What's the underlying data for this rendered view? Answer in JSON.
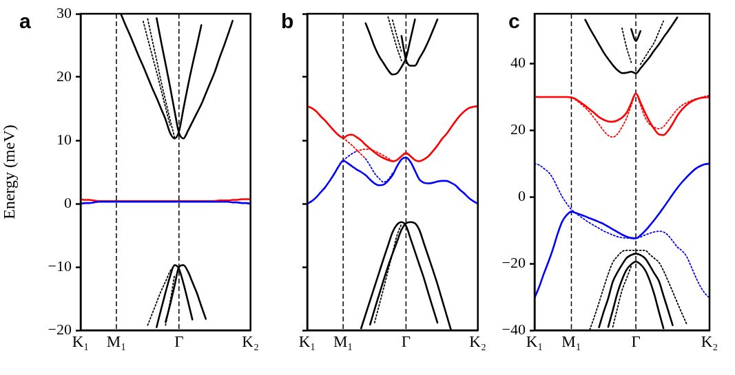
{
  "chart_data": [
    {
      "type": "line",
      "title": "a",
      "ylabel": "Energy (meV)",
      "ylim": [
        -20,
        30
      ],
      "marker": "none",
      "categories": [
        "K₁",
        null,
        null,
        null,
        null,
        null,
        null,
        null,
        "M₁",
        null,
        null,
        null,
        null,
        null,
        null,
        null,
        null,
        null,
        null,
        null,
        null,
        null,
        "Γ",
        null,
        null,
        null,
        null,
        null,
        null,
        null,
        null,
        null,
        null,
        null,
        null,
        null,
        null,
        null,
        "K₂"
      ],
      "yticks": [
        -20,
        -10,
        0,
        10,
        20,
        30
      ],
      "ref_lines": [
        {
          "axis": "x",
          "value": "M₁",
          "color": "#000000",
          "line_style": "dashed"
        },
        {
          "axis": "x",
          "value": "Γ",
          "color": "#000000",
          "line_style": "dashed"
        }
      ],
      "series": [
        {
          "color": "#000000",
          "line_style": "solid",
          "values": [
            null,
            null,
            null,
            null,
            null,
            null,
            null,
            null,
            null,
            30,
            28.3,
            26.7,
            25,
            23.3,
            21.7,
            20,
            18.3,
            16.7,
            15,
            13.3,
            11.2,
            10.3,
            11.4,
            15,
            18.6,
            21.9,
            25,
            28.2,
            null,
            null,
            null,
            null,
            null,
            null,
            null,
            null,
            null,
            null,
            null
          ]
        },
        {
          "color": "#000000",
          "line_style": "solid",
          "values": [
            null,
            null,
            null,
            null,
            null,
            null,
            null,
            null,
            null,
            null,
            null,
            null,
            null,
            null,
            null,
            null,
            null,
            29.3,
            25.6,
            22.1,
            18.5,
            14.7,
            11.2,
            10.3,
            11.5,
            12.9,
            14.3,
            15.7,
            17.4,
            19.1,
            20.8,
            22.9,
            24.8,
            26.8,
            28.9,
            null,
            null,
            null,
            null
          ]
        },
        {
          "color": "#000000",
          "line_style": "dotted",
          "values": [
            null,
            null,
            null,
            null,
            null,
            null,
            null,
            null,
            null,
            null,
            null,
            null,
            null,
            null,
            28.8,
            26.1,
            23.4,
            20.8,
            18,
            15.2,
            12.4,
            null,
            null,
            null,
            null,
            null,
            null,
            null,
            null,
            null,
            null,
            null,
            null,
            null,
            null,
            null,
            null,
            null,
            null
          ]
        },
        {
          "color": "#000000",
          "line_style": "dotted",
          "values": [
            null,
            null,
            null,
            null,
            null,
            null,
            null,
            null,
            null,
            null,
            null,
            null,
            null,
            null,
            null,
            29.2,
            25.9,
            22.7,
            19.3,
            16.3,
            13.3,
            10.5,
            null,
            null,
            null,
            null,
            null,
            null,
            null,
            null,
            null,
            null,
            null,
            null,
            null,
            null,
            null,
            null,
            null
          ]
        },
        {
          "color": "#000000",
          "line_style": "solid",
          "values": [
            null,
            null,
            null,
            null,
            null,
            null,
            null,
            null,
            null,
            null,
            null,
            null,
            null,
            null,
            null,
            null,
            null,
            -19.5,
            -16.7,
            -14,
            -11.5,
            -9.7,
            -10.3,
            -12.6,
            -15.4,
            -18.3,
            null,
            null,
            null,
            null,
            null,
            null,
            null,
            null,
            null,
            null,
            null,
            null,
            null
          ]
        },
        {
          "color": "#000000",
          "line_style": "solid",
          "values": [
            null,
            null,
            null,
            null,
            null,
            null,
            null,
            null,
            null,
            null,
            null,
            null,
            null,
            null,
            null,
            null,
            null,
            null,
            null,
            -18.7,
            -16,
            -13,
            -10,
            -9.7,
            -10.7,
            -12.4,
            -14.1,
            -16.2,
            -18.2,
            null,
            null,
            null,
            null,
            null,
            null,
            null,
            null,
            null,
            null
          ]
        },
        {
          "color": "#000000",
          "line_style": "dotted",
          "values": [
            null,
            null,
            null,
            null,
            null,
            null,
            null,
            null,
            null,
            null,
            null,
            null,
            null,
            null,
            null,
            -19.2,
            -17.4,
            -15.6,
            -13.8,
            -12.3,
            -10.7,
            -9.8,
            null,
            null,
            null,
            null,
            null,
            null,
            null,
            null,
            null,
            null,
            null,
            null,
            null,
            null,
            null,
            null,
            null
          ]
        },
        {
          "color": "#000000",
          "line_style": "dotted",
          "values": [
            null,
            null,
            null,
            null,
            null,
            null,
            null,
            null,
            null,
            null,
            null,
            null,
            null,
            null,
            null,
            null,
            null,
            null,
            null,
            -19.2,
            -15.6,
            -11.3,
            null,
            null,
            null,
            null,
            null,
            null,
            null,
            null,
            null,
            null,
            null,
            null,
            null,
            null,
            null,
            null,
            null
          ]
        },
        {
          "color": "#0000ff",
          "line_style": "solid",
          "values": [
            0,
            0.1,
            0.1,
            0.2,
            0.3,
            0.3,
            0.3,
            0.3,
            0.3,
            0.3,
            0.3,
            0.3,
            0.3,
            0.3,
            0.3,
            0.3,
            0.3,
            0.3,
            0.3,
            0.3,
            0.3,
            0.3,
            0.3,
            0.3,
            0.3,
            0.3,
            0.3,
            0.3,
            0.3,
            0.3,
            0.3,
            0.3,
            0.3,
            0.3,
            0.2,
            0.2,
            0.1,
            0.1,
            0
          ]
        },
        {
          "color": "#ff0000",
          "line_style": "solid",
          "values": [
            0.7,
            0.6,
            0.6,
            0.5,
            0.4,
            0.4,
            0.4,
            0.4,
            0.4,
            0.4,
            0.4,
            0.4,
            0.4,
            0.4,
            0.4,
            0.4,
            0.4,
            0.4,
            0.4,
            0.4,
            0.4,
            0.4,
            0.4,
            0.4,
            0.4,
            0.4,
            0.4,
            0.4,
            0.4,
            0.4,
            0.4,
            0.5,
            0.5,
            0.5,
            0.6,
            0.6,
            0.7,
            0.7,
            0.7
          ]
        }
      ]
    },
    {
      "type": "line",
      "title": "b",
      "ylim": [
        -20,
        30
      ],
      "marker": "none",
      "tick_labels": "x",
      "categories": [
        "K₁",
        null,
        null,
        null,
        null,
        null,
        null,
        null,
        "M₁",
        null,
        null,
        null,
        null,
        null,
        null,
        null,
        null,
        null,
        null,
        null,
        null,
        null,
        "Γ",
        null,
        null,
        null,
        null,
        null,
        null,
        null,
        null,
        null,
        null,
        null,
        null,
        null,
        null,
        null,
        "K₂"
      ],
      "yticks": [
        -20,
        -10,
        0,
        10,
        20,
        30
      ],
      "ref_lines": [
        {
          "axis": "x",
          "value": "M₁",
          "color": "#000000",
          "line_style": "dashed"
        },
        {
          "axis": "x",
          "value": "Γ",
          "color": "#000000",
          "line_style": "dashed"
        }
      ],
      "series": [
        {
          "color": "#000000",
          "line_style": "solid",
          "values": [
            null,
            null,
            null,
            null,
            null,
            null,
            null,
            null,
            null,
            null,
            null,
            null,
            null,
            28.5,
            26.7,
            24.8,
            23.3,
            22.2,
            21.1,
            20.4,
            20.6,
            21.6,
            23,
            26,
            29.1,
            null,
            null,
            null,
            null,
            null,
            null,
            null,
            null,
            null,
            null,
            null,
            null,
            null,
            null
          ]
        },
        {
          "color": "#000000",
          "line_style": "solid",
          "values": [
            null,
            null,
            null,
            null,
            null,
            null,
            null,
            null,
            null,
            null,
            null,
            null,
            null,
            null,
            null,
            null,
            null,
            null,
            null,
            null,
            null,
            26.5,
            22.7,
            21.8,
            21.8,
            23,
            24.2,
            25.7,
            27.4,
            29.1,
            null,
            null,
            null,
            null,
            null,
            null,
            null,
            null,
            null
          ]
        },
        {
          "color": "#000000",
          "line_style": "dotted",
          "values": [
            null,
            null,
            null,
            null,
            null,
            null,
            null,
            null,
            null,
            null,
            null,
            null,
            null,
            null,
            null,
            null,
            null,
            null,
            29.5,
            27,
            24.6,
            22.6,
            null,
            null,
            null,
            null,
            null,
            null,
            null,
            null,
            null,
            null,
            null,
            null,
            null,
            null,
            null,
            null,
            null
          ]
        },
        {
          "color": "#000000",
          "line_style": "dotted",
          "values": [
            null,
            null,
            null,
            null,
            null,
            null,
            null,
            null,
            null,
            null,
            null,
            null,
            null,
            null,
            null,
            null,
            null,
            null,
            null,
            29,
            26.4,
            24,
            null,
            null,
            null,
            null,
            null,
            null,
            null,
            null,
            null,
            null,
            null,
            null,
            null,
            null,
            null,
            null,
            null
          ]
        },
        {
          "color": "#000000",
          "line_style": "solid",
          "values": [
            null,
            null,
            null,
            null,
            null,
            null,
            null,
            null,
            null,
            null,
            null,
            null,
            -19.7,
            -17.5,
            -15.3,
            -13.1,
            -10.9,
            -8.7,
            -6.6,
            -4.5,
            -3.3,
            -2.9,
            -3.5,
            -5.5,
            -7.6,
            -9.7,
            -11.8,
            -14.2,
            -16.5,
            -18.8,
            null,
            null,
            null,
            null,
            null,
            null,
            null,
            null,
            null
          ]
        },
        {
          "color": "#000000",
          "line_style": "solid",
          "values": [
            null,
            null,
            null,
            null,
            null,
            null,
            null,
            null,
            null,
            null,
            null,
            null,
            null,
            null,
            -19.1,
            -16.7,
            -14.4,
            -12.1,
            -9.9,
            -7.9,
            -6,
            -4.1,
            -3.1,
            -2.9,
            -3.1,
            -4.2,
            -6.3,
            -8.4,
            -10.5,
            -12.7,
            -15.1,
            -17.5,
            -19.9,
            null,
            null,
            null,
            null,
            null,
            null
          ]
        },
        {
          "color": "#000000",
          "line_style": "dotted",
          "values": [
            null,
            null,
            null,
            null,
            null,
            null,
            null,
            null,
            null,
            null,
            null,
            null,
            null,
            null,
            null,
            -18.8,
            -16.1,
            -13.4,
            -10.6,
            -7.8,
            -5,
            -3.2,
            null,
            null,
            null,
            null,
            null,
            null,
            null,
            null,
            null,
            null,
            null,
            null,
            null,
            null,
            null,
            null,
            null
          ]
        },
        {
          "color": "#0000ff",
          "line_style": "solid",
          "values": [
            0,
            0.4,
            1,
            1.8,
            2.6,
            3.6,
            4.7,
            5.9,
            6.8,
            6.4,
            5.9,
            5.4,
            5,
            4.5,
            3.8,
            3.2,
            2.9,
            3,
            3.6,
            4.5,
            5.9,
            7,
            7.3,
            6.6,
            5.2,
            3.8,
            3.3,
            3.2,
            3.3,
            3.5,
            3.6,
            3.6,
            3.3,
            2.9,
            2.2,
            1.6,
            0.9,
            0.4,
            0
          ]
        },
        {
          "color": "#ff0000",
          "line_style": "solid",
          "values": [
            15.4,
            15.1,
            14.6,
            13.8,
            13.1,
            12.3,
            11.5,
            10.8,
            10.4,
            10.8,
            10.9,
            10.5,
            10,
            9.3,
            8.7,
            8.1,
            7.6,
            7.2,
            6.9,
            6.7,
            6.9,
            7.5,
            8,
            7.5,
            6.9,
            6.7,
            7,
            7.5,
            8.3,
            9.2,
            10.2,
            11,
            12,
            13,
            13.9,
            14.6,
            15.1,
            15.3,
            15.4
          ]
        },
        {
          "color": "#ff0000",
          "line_style": "dotted",
          "values": [
            null,
            null,
            null,
            null,
            null,
            null,
            null,
            null,
            10.4,
            9.8,
            9.2,
            8.5,
            7.8,
            7.1,
            null,
            null,
            null,
            null,
            null,
            null,
            null,
            null,
            null,
            null,
            null,
            null,
            null,
            null,
            null,
            null,
            null,
            null,
            null,
            null,
            null,
            null,
            null,
            null,
            null
          ]
        },
        {
          "color": "#0000ff",
          "line_style": "dotted",
          "values": [
            null,
            null,
            null,
            null,
            null,
            null,
            null,
            null,
            null,
            null,
            null,
            null,
            null,
            7.1,
            6,
            4.8,
            4,
            3.4,
            3.8,
            4.8,
            null,
            null,
            null,
            null,
            null,
            null,
            null,
            null,
            null,
            null,
            null,
            null,
            null,
            null,
            null,
            null,
            null,
            null,
            null
          ]
        },
        {
          "color": "#0000ff",
          "line_style": "dotted",
          "values": [
            null,
            null,
            null,
            null,
            null,
            null,
            null,
            null,
            6.8,
            7.4,
            7.9,
            8.3,
            null,
            null,
            null,
            null,
            null,
            null,
            null,
            null,
            null,
            null,
            null,
            null,
            null,
            null,
            null,
            null,
            null,
            null,
            null,
            null,
            null,
            null,
            null,
            null,
            null,
            null,
            null
          ]
        },
        {
          "color": "#ff0000",
          "line_style": "dotted",
          "values": [
            null,
            null,
            null,
            null,
            null,
            null,
            null,
            null,
            null,
            null,
            null,
            8.3,
            8.5,
            8.6,
            8.6,
            8.3,
            8,
            7.6,
            7.2,
            6.7,
            null,
            null,
            null,
            null,
            null,
            null,
            null,
            null,
            null,
            null,
            null,
            null,
            null,
            null,
            null,
            null,
            null,
            null,
            null
          ]
        }
      ]
    },
    {
      "type": "line",
      "title": "c",
      "ylim": [
        -40,
        55
      ],
      "marker": "none",
      "categories": [
        "K₁",
        null,
        null,
        null,
        null,
        null,
        null,
        null,
        "M₁",
        null,
        null,
        null,
        null,
        null,
        null,
        null,
        null,
        null,
        null,
        null,
        null,
        null,
        "Γ",
        null,
        null,
        null,
        null,
        null,
        null,
        null,
        null,
        null,
        null,
        null,
        null,
        null,
        null,
        null,
        "K₂"
      ],
      "yticks": [
        -40,
        -20,
        0,
        20,
        40
      ],
      "ref_lines": [
        {
          "axis": "x",
          "value": "M₁",
          "color": "#000000",
          "line_style": "dashed"
        },
        {
          "axis": "x",
          "value": "Γ",
          "color": "#000000",
          "line_style": "dashed"
        }
      ],
      "series": [
        {
          "color": "#000000",
          "line_style": "solid",
          "values": [
            null,
            null,
            null,
            null,
            null,
            null,
            null,
            null,
            null,
            null,
            null,
            53.2,
            50.6,
            48.2,
            45.8,
            43.4,
            41.4,
            39.6,
            38.1,
            37.2,
            37.3,
            37.6,
            37.1,
            38.6,
            40.3,
            42,
            44,
            45.8,
            47.9,
            49.8,
            51.8,
            53.9,
            null,
            null,
            null,
            null,
            null,
            null,
            null
          ]
        },
        {
          "color": "#000000",
          "line_style": "solid",
          "values": [
            null,
            null,
            null,
            null,
            null,
            null,
            null,
            null,
            null,
            null,
            null,
            null,
            null,
            null,
            null,
            null,
            null,
            null,
            null,
            null,
            null,
            50.4,
            46.8,
            49.8,
            null,
            null,
            null,
            null,
            null,
            null,
            null,
            null,
            null,
            null,
            null,
            null,
            null,
            null,
            null
          ]
        },
        {
          "color": "#000000",
          "line_style": "dotted",
          "values": [
            null,
            null,
            null,
            null,
            null,
            null,
            null,
            null,
            null,
            null,
            null,
            null,
            null,
            null,
            null,
            null,
            null,
            null,
            null,
            50.7,
            44.8,
            40.4,
            null,
            null,
            null,
            null,
            null,
            null,
            null,
            null,
            null,
            null,
            null,
            null,
            null,
            null,
            null,
            null,
            null
          ]
        },
        {
          "color": "#000000",
          "line_style": "dotted",
          "values": [
            null,
            null,
            null,
            null,
            null,
            null,
            null,
            null,
            null,
            null,
            null,
            null,
            null,
            null,
            null,
            null,
            null,
            null,
            null,
            null,
            null,
            null,
            null,
            39.8,
            42,
            44.2,
            46.4,
            49.6,
            52.8,
            null,
            null,
            null,
            null,
            null,
            null,
            null,
            null,
            null,
            null
          ]
        },
        {
          "color": "#000000",
          "line_style": "solid",
          "values": [
            null,
            null,
            null,
            null,
            null,
            null,
            null,
            null,
            null,
            null,
            null,
            null,
            null,
            null,
            -39.1,
            -34.5,
            -30.4,
            -25.4,
            -22.6,
            -20.3,
            -18.3,
            -17.4,
            -17,
            -17.4,
            -18.4,
            -20.5,
            -22.9,
            -25.2,
            -29.6,
            -34,
            -38.5,
            null,
            null,
            null,
            null,
            null,
            null,
            null,
            null
          ]
        },
        {
          "color": "#000000",
          "line_style": "solid",
          "values": [
            null,
            null,
            null,
            null,
            null,
            null,
            null,
            null,
            null,
            null,
            null,
            null,
            null,
            null,
            null,
            null,
            -39,
            -34,
            -28.8,
            -24.8,
            -21.8,
            -20.2,
            -19.4,
            -20.2,
            -21.9,
            -25,
            -29.2,
            -34.4,
            -39.4,
            null,
            null,
            null,
            null,
            null,
            null,
            null,
            null,
            null,
            null
          ]
        },
        {
          "color": "#000000",
          "line_style": "dotted",
          "values": [
            null,
            null,
            null,
            null,
            null,
            null,
            null,
            null,
            null,
            null,
            null,
            null,
            -39.8,
            -35.9,
            -31.7,
            -27.3,
            -23.1,
            -19.6,
            -17.8,
            -16.4,
            -16,
            -16,
            -16,
            -16,
            -16,
            -17.2,
            -18.4,
            -19.6,
            -22.1,
            -25.2,
            -28.4,
            -31.7,
            -34.9,
            -38,
            null,
            null,
            null,
            null,
            null
          ]
        },
        {
          "color": "#000000",
          "line_style": "dotted",
          "values": [
            null,
            null,
            null,
            null,
            null,
            null,
            null,
            null,
            null,
            null,
            null,
            null,
            null,
            null,
            null,
            null,
            null,
            -39,
            -33.4,
            -28,
            -24.4,
            -20.8,
            null,
            null,
            null,
            null,
            null,
            null,
            null,
            null,
            null,
            null,
            null,
            null,
            null,
            null,
            null,
            null,
            null
          ]
        },
        {
          "color": "#0000ff",
          "line_style": "solid",
          "values": [
            -30.3,
            -27,
            -23.1,
            -19.5,
            -15.6,
            -11.1,
            -7.4,
            -5.4,
            -4.4,
            -4.8,
            -5.3,
            -5.8,
            -6.4,
            -6.9,
            -7.5,
            -8.1,
            -8.9,
            -9.7,
            -10.5,
            -11.3,
            -11.9,
            -12.3,
            -12.4,
            -11.5,
            -10.2,
            -8.6,
            -6.9,
            -5.1,
            -3.2,
            -1.2,
            0.8,
            2.7,
            4.4,
            5.9,
            7.3,
            8.5,
            9.3,
            9.8,
            10
          ]
        },
        {
          "color": "#0000ff",
          "line_style": "dotted",
          "values": [
            10,
            9.6,
            8.6,
            7.5,
            5.6,
            2.8,
            0.1,
            -2,
            -3.7,
            -4.9,
            -5.9,
            -6.9,
            -7.8,
            -8.6,
            -9.4,
            -10.2,
            -10.8,
            -11.4,
            -11.9,
            -12.2,
            -12.3,
            -12.4,
            -12.4,
            -12,
            -11.4,
            -10.9,
            -10.5,
            -10.3,
            -10.5,
            -11.5,
            -13.2,
            -15,
            -16.1,
            -17.8,
            -20.8,
            -24,
            -26.8,
            -28.9,
            -30.3
          ]
        },
        {
          "color": "#ff0000",
          "line_style": "solid",
          "values": [
            30.1,
            30,
            30,
            30,
            30,
            30,
            30,
            30,
            29.9,
            29.3,
            28.4,
            27.4,
            26.3,
            25.2,
            24,
            23.2,
            22.7,
            22.6,
            23,
            23.8,
            25.3,
            28.2,
            31.1,
            28.4,
            25.3,
            22.6,
            20.4,
            18.8,
            18.6,
            19.9,
            22,
            24.4,
            26.2,
            27.6,
            28.6,
            29.3,
            29.7,
            29.9,
            30
          ]
        },
        {
          "color": "#ff0000",
          "line_style": "dotted",
          "values": [
            30.1,
            30,
            30,
            30,
            30,
            30,
            30,
            30,
            29.9,
            29.1,
            28,
            26.8,
            25.4,
            23.6,
            21.8,
            19.9,
            18.5,
            18,
            18.9,
            21,
            23.7,
            27.5,
            31.1,
            27.6,
            23.9,
            21.8,
            20.9,
            20.5,
            21.1,
            22.8,
            24.6,
            26.3,
            27.5,
            28.3,
            28.9,
            29.4,
            29.8,
            30.2,
            30.5
          ]
        }
      ]
    }
  ]
}
